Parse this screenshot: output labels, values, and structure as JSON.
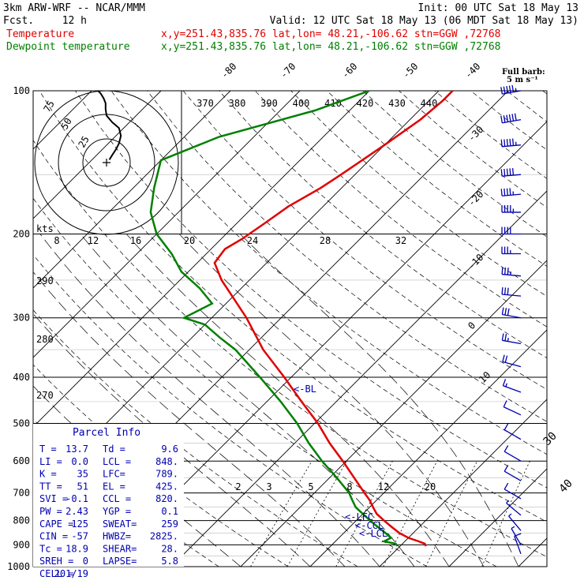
{
  "header": {
    "model": "3km ARW-WRF -- NCAR/MMM",
    "init": "Init: 00 UTC Sat 18 May 13",
    "fcst_label": "Fcst.",
    "fcst_value": "12 h",
    "valid": "Valid: 12 UTC Sat 18 May 13 (06 MDT Sat 18 May 13)",
    "temp_label": "Temperature",
    "temp_info": "x,y=251.43,835.76   lat,lon= 48.21,-106.62  stn=GGW ,72768",
    "dew_label": "Dewpoint temperature",
    "dew_info": "x,y=251.43,835.76   lat,lon= 48.21,-106.62  stn=GGW ,72768"
  },
  "barb_legend": {
    "title": "Full barb:",
    "value": "5 m s⁻¹"
  },
  "colors": {
    "temperature": "#e00000",
    "dewpoint": "#008000",
    "grid": "#000000",
    "annot": "#0000b0",
    "hodograph": "#000000"
  },
  "chart_data": {
    "type": "line",
    "title": "",
    "ylabel": "",
    "pressure_axis": {
      "scale": "log",
      "range": [
        1000,
        100
      ],
      "ticks": [
        "100",
        "200",
        "300",
        "400",
        "500",
        "600",
        "700",
        "800",
        "900",
        "1000"
      ]
    },
    "isotherm_labels": [
      "-80",
      "-70",
      "-60",
      "-50",
      "-40",
      "-30",
      "-20",
      "-10",
      "0",
      "10",
      "30",
      "40"
    ],
    "theta_labels": [
      "370",
      "380",
      "390",
      "400",
      "410",
      "420",
      "430",
      "440"
    ],
    "dry_adiabat_labels": [
      "290",
      "280",
      "270"
    ],
    "mixing_ratio_labels": [
      "2",
      "3",
      "5",
      "8",
      "12",
      "20"
    ],
    "series": [
      {
        "name": "Temperature",
        "pressure": [
          905,
          895,
          885,
          870,
          850,
          825,
          800,
          775,
          750,
          725,
          700,
          650,
          600,
          550,
          500,
          450,
          400,
          350,
          300,
          250,
          230,
          215,
          205,
          190,
          175,
          160,
          150,
          130,
          115,
          105,
          100
        ],
        "values": [
          13.7,
          13.2,
          12.0,
          10.0,
          8.0,
          6.0,
          4.0,
          2.0,
          0.5,
          -1.0,
          -2.8,
          -6.5,
          -10.5,
          -15.0,
          -19.5,
          -25.0,
          -31.0,
          -38.0,
          -45.0,
          -54.0,
          -57.5,
          -58.0,
          -57.0,
          -56.0,
          -55.0,
          -53.0,
          -52.0,
          -50.0,
          -48.5,
          -48.0,
          -48.0
        ]
      },
      {
        "name": "Dewpoint temperature",
        "pressure": [
          905,
          895,
          885,
          870,
          850,
          825,
          800,
          775,
          750,
          725,
          700,
          650,
          600,
          550,
          500,
          450,
          400,
          350,
          330,
          310,
          300,
          280,
          260,
          240,
          220,
          200,
          180,
          160,
          140,
          125,
          110,
          100
        ],
        "values": [
          9.6,
          9.0,
          7.0,
          7.5,
          6.0,
          4.0,
          2.0,
          0.0,
          -2.0,
          -3.5,
          -5.0,
          -9.0,
          -13.5,
          -18.0,
          -22.5,
          -28.0,
          -34.5,
          -42.0,
          -46.0,
          -50.0,
          -54.0,
          -52.0,
          -56.0,
          -61.0,
          -65.0,
          -70.0,
          -74.0,
          -77.0,
          -80.0,
          -75.0,
          -65.0,
          -60.0
        ]
      }
    ],
    "annotations": [
      "<-BL",
      "<-LFC",
      "<-CCL",
      "<-LCL"
    ],
    "hodograph": {
      "unit_label": "kts",
      "ring_labels": [
        "75",
        "50",
        "25"
      ],
      "speed_axis_ticks": [
        "8",
        "12",
        "16",
        "20",
        "24",
        "28",
        "32"
      ],
      "u": [
        3,
        6,
        10,
        13,
        15,
        13,
        6,
        0,
        -1,
        -1,
        -3,
        -6,
        -8,
        -9
      ],
      "v": [
        -3,
        -8,
        -14,
        -20,
        -28,
        -36,
        -42,
        -49,
        -56,
        -62,
        -67,
        -72,
        -74,
        -75
      ]
    },
    "wind_barbs": [
      {
        "p": 100,
        "spd": 55,
        "dir": 260
      },
      {
        "p": 115,
        "spd": 60,
        "dir": 260
      },
      {
        "p": 130,
        "spd": 55,
        "dir": 265
      },
      {
        "p": 150,
        "spd": 50,
        "dir": 265
      },
      {
        "p": 165,
        "spd": 45,
        "dir": 265
      },
      {
        "p": 180,
        "spd": 45,
        "dir": 270
      },
      {
        "p": 200,
        "spd": 40,
        "dir": 270
      },
      {
        "p": 220,
        "spd": 35,
        "dir": 270
      },
      {
        "p": 245,
        "spd": 35,
        "dir": 275
      },
      {
        "p": 270,
        "spd": 30,
        "dir": 275
      },
      {
        "p": 300,
        "spd": 30,
        "dir": 280
      },
      {
        "p": 340,
        "spd": 25,
        "dir": 280
      },
      {
        "p": 380,
        "spd": 20,
        "dir": 285
      },
      {
        "p": 430,
        "spd": 15,
        "dir": 290
      },
      {
        "p": 480,
        "spd": 10,
        "dir": 295
      },
      {
        "p": 540,
        "spd": 10,
        "dir": 300
      },
      {
        "p": 600,
        "spd": 10,
        "dir": 300
      },
      {
        "p": 660,
        "spd": 10,
        "dir": 300
      },
      {
        "p": 720,
        "spd": 10,
        "dir": 300
      },
      {
        "p": 780,
        "spd": 5,
        "dir": 310
      },
      {
        "p": 840,
        "spd": 5,
        "dir": 320
      },
      {
        "p": 900,
        "spd": 5,
        "dir": 330
      },
      {
        "p": 940,
        "spd": 10,
        "dir": 340
      }
    ]
  },
  "parcel_info": {
    "title": "Parcel Info",
    "rows": [
      [
        "T  =",
        "13.7",
        "Td =",
        "9.6"
      ],
      [
        "LI =",
        "0.0",
        "LCL =",
        "848."
      ],
      [
        "K  =",
        "35",
        "LFC=",
        "789."
      ],
      [
        "TT =",
        "51",
        "EL =",
        "425."
      ],
      [
        "SVI =",
        "-0.1",
        "CCL =",
        "820."
      ],
      [
        "PW =",
        "2.43",
        "YGP =",
        "0.1"
      ],
      [
        "CAPE =",
        "125",
        "SWEAT=",
        "259"
      ],
      [
        "CIN =",
        "-57",
        "HWBZ=",
        "2825."
      ],
      [
        "Tc =",
        "18.9",
        "SHEAR=",
        "28."
      ],
      [
        "SREH =",
        "0",
        "LAPSE=",
        "5.8"
      ],
      [
        "CELL =",
        "201/19",
        "",
        ""
      ]
    ]
  }
}
